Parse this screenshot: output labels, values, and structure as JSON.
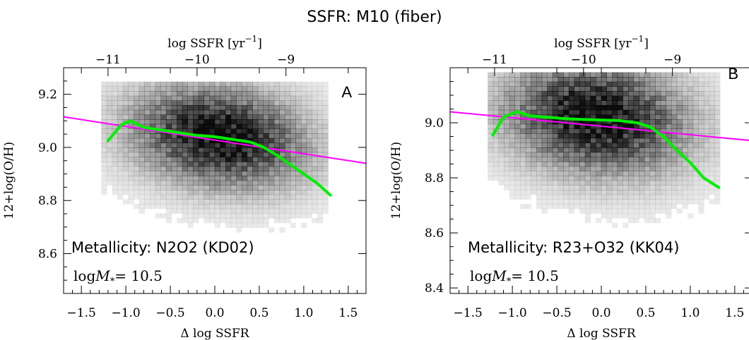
{
  "figure": {
    "title": "SSFR: M10 (fiber)",
    "colors": {
      "fit_line": "#ff00ff",
      "median_line": "#00ee00",
      "density": "#000000"
    }
  },
  "chart_data": [
    {
      "type": "heatmap",
      "panel_letter": "A",
      "metallicity_label": "Metallicity: N2O2 (KD02)",
      "mass_label_text": "log",
      "mass_symbol": "M",
      "mass_subscript": "*",
      "mass_value": "=  10.5",
      "xlabel": "Δ log SSFR",
      "ylabel": "12+log(O/H)",
      "top_xlabel": "log SSFR [yr",
      "top_xlabel_exponent": "−1",
      "top_xlabel_close": "]",
      "xlim": [
        -1.7,
        1.7
      ],
      "ylim": [
        8.45,
        9.3
      ],
      "xticks": [
        -1.5,
        -1.0,
        -0.5,
        0.0,
        0.5,
        1.0,
        1.5
      ],
      "xtick_labels": [
        "−1.5",
        "−1.0",
        "−0.5",
        "0.0",
        "0.5",
        "1.0",
        "1.5"
      ],
      "yticks": [
        8.6,
        8.8,
        9.0,
        9.2
      ],
      "ytick_labels": [
        "8.6",
        "8.8",
        "9.0",
        "9.2"
      ],
      "top_ticks": [
        -1.2,
        -0.2,
        0.8
      ],
      "top_tick_labels": [
        "−11",
        "−10",
        "−9"
      ],
      "density": {
        "center": [
          0.05,
          9.04
        ],
        "spread": [
          0.62,
          0.12
        ],
        "tilt": -0.035,
        "x_range": [
          -1.3,
          1.3
        ],
        "y_range": [
          8.6,
          9.25
        ]
      },
      "fit_line": {
        "x": [
          -1.7,
          1.7
        ],
        "y": [
          9.115,
          8.94
        ]
      },
      "median_line": {
        "x": [
          -1.2,
          -1.05,
          -0.95,
          -0.8,
          -0.6,
          -0.4,
          -0.2,
          0.0,
          0.2,
          0.4,
          0.55,
          0.7,
          0.85,
          1.0,
          1.15,
          1.3
        ],
        "y": [
          9.025,
          9.085,
          9.1,
          9.075,
          9.065,
          9.055,
          9.045,
          9.04,
          9.03,
          9.02,
          9.0,
          8.97,
          8.935,
          8.9,
          8.865,
          8.82
        ]
      }
    },
    {
      "type": "heatmap",
      "panel_letter": "B",
      "metallicity_label": "Metallicity: R23+O32 (KK04)",
      "mass_label_text": "log",
      "mass_symbol": "M",
      "mass_subscript": "*",
      "mass_value": "=  10.5",
      "xlabel": "Δ log SSFR",
      "ylabel": "12+log(O/H)",
      "top_xlabel": "log SSFR [yr",
      "top_xlabel_exponent": "−1",
      "top_xlabel_close": "]",
      "xlim": [
        -1.7,
        1.7
      ],
      "ylim": [
        8.38,
        9.2
      ],
      "xticks": [
        -1.5,
        -1.0,
        -0.5,
        0.0,
        0.5,
        1.0,
        1.5
      ],
      "xtick_labels": [
        "−1.5",
        "−1.0",
        "−0.5",
        "0.0",
        "0.5",
        "1.0",
        "1.5"
      ],
      "yticks": [
        8.4,
        8.6,
        8.8,
        9.0
      ],
      "ytick_labels": [
        "8.4",
        "8.6",
        "8.8",
        "9.0"
      ],
      "top_ticks": [
        -1.2,
        -0.2,
        0.8
      ],
      "top_tick_labels": [
        "−11",
        "−10",
        "−9"
      ],
      "density": {
        "center": [
          -0.05,
          9.02
        ],
        "spread": [
          0.65,
          0.13
        ],
        "tilt": -0.03,
        "x_range": [
          -1.3,
          1.35
        ],
        "y_range": [
          8.5,
          9.18
        ]
      },
      "fit_line": {
        "x": [
          -1.7,
          1.7
        ],
        "y": [
          9.04,
          8.935
        ]
      },
      "median_line": {
        "x": [
          -1.22,
          -1.1,
          -0.95,
          -0.8,
          -0.6,
          -0.4,
          -0.2,
          0.0,
          0.2,
          0.4,
          0.55,
          0.7,
          0.85,
          1.0,
          1.15,
          1.32
        ],
        "y": [
          8.955,
          9.02,
          9.04,
          9.025,
          9.02,
          9.015,
          9.012,
          9.01,
          9.008,
          9.0,
          8.985,
          8.95,
          8.9,
          8.855,
          8.8,
          8.765
        ]
      }
    }
  ]
}
